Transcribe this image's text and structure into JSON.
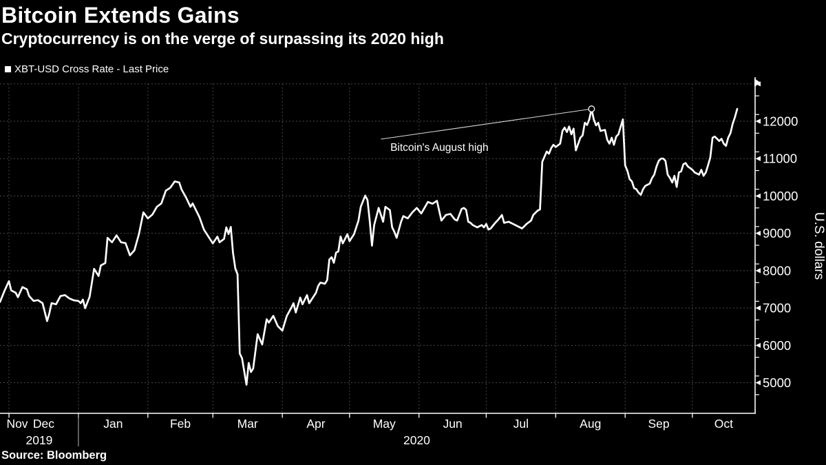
{
  "header": {
    "title": "Bitcoin Extends Gains",
    "subtitle": "Cryptocurrency is on the verge of surpassing its 2020 high"
  },
  "legend": {
    "label": "XBT-USD Cross Rate - Last Price",
    "swatch_color": "#ffffff"
  },
  "source_label": "Source: Bloomberg",
  "colors": {
    "background": "#000000",
    "line": "#ffffff",
    "grid": "#4a4a4a",
    "text": "#ffffff",
    "annotation_line": "#dcdcdc"
  },
  "chart_data": {
    "type": "line",
    "title": "Bitcoin Extends Gains",
    "xlabel": "",
    "ylabel": "U.S. dollars",
    "grid": true,
    "legend_position": "top-left",
    "x_domain": [
      "2019-11-27",
      "2020-10-29"
    ],
    "y_domain": [
      4180,
      13125
    ],
    "y_tick_labels": [
      5000,
      6000,
      7000,
      8000,
      9000,
      10000,
      11000,
      12000
    ],
    "y_gridlines": [
      5000,
      6000,
      7000,
      8000,
      9000,
      10000,
      11000,
      12000,
      13000
    ],
    "y_minor_step": 500,
    "x_month_boundaries": [
      "2019-12-01",
      "2020-01-01",
      "2020-02-01",
      "2020-03-01",
      "2020-04-01",
      "2020-05-01",
      "2020-06-01",
      "2020-07-01",
      "2020-08-01",
      "2020-09-01",
      "2020-10-01"
    ],
    "x_month_labels": [
      "Nov",
      "Dec",
      "Jan",
      "Feb",
      "Mar",
      "Apr",
      "May",
      "Jun",
      "Jul",
      "Aug",
      "Sep",
      "Oct"
    ],
    "x_year_labels": [
      {
        "text": "2019",
        "from": "2019-11-27",
        "to": "2020-01-01"
      },
      {
        "text": "2020",
        "from": "2020-01-01",
        "to": "2020-10-29"
      }
    ],
    "year_separator_date": "2020-01-01",
    "annotation": {
      "text": "Bitcoin's August high",
      "marker_date": "2020-08-17",
      "marker_value": 12330,
      "line_start_date": "2020-05-15",
      "line_start_value": 11520,
      "text_end_date": "2020-07-02",
      "text_end_value": 11300
    },
    "series": [
      {
        "name": "XBT-USD Cross Rate - Last Price",
        "color": "#ffffff",
        "points": [
          [
            "2019-11-27",
            7160
          ],
          [
            "2019-11-29",
            7460
          ],
          [
            "2019-12-01",
            7720
          ],
          [
            "2019-12-02",
            7470
          ],
          [
            "2019-12-04",
            7410
          ],
          [
            "2019-12-05",
            7290
          ],
          [
            "2019-12-07",
            7560
          ],
          [
            "2019-12-09",
            7500
          ],
          [
            "2019-12-10",
            7320
          ],
          [
            "2019-12-12",
            7190
          ],
          [
            "2019-12-14",
            7210
          ],
          [
            "2019-12-16",
            7130
          ],
          [
            "2019-12-18",
            6650
          ],
          [
            "2019-12-19",
            6850
          ],
          [
            "2019-12-20",
            7130
          ],
          [
            "2019-12-22",
            7100
          ],
          [
            "2019-12-24",
            7320
          ],
          [
            "2019-12-26",
            7345
          ],
          [
            "2019-12-28",
            7255
          ],
          [
            "2019-12-30",
            7205
          ],
          [
            "2020-01-01",
            7190
          ],
          [
            "2020-01-02",
            7130
          ],
          [
            "2020-01-03",
            7225
          ],
          [
            "2020-01-04",
            6995
          ],
          [
            "2020-01-06",
            7300
          ],
          [
            "2020-01-08",
            8050
          ],
          [
            "2020-01-10",
            7855
          ],
          [
            "2020-01-11",
            8140
          ],
          [
            "2020-01-13",
            8205
          ],
          [
            "2020-01-14",
            8880
          ],
          [
            "2020-01-16",
            8760
          ],
          [
            "2020-01-18",
            8945
          ],
          [
            "2020-01-20",
            8760
          ],
          [
            "2020-01-22",
            8740
          ],
          [
            "2020-01-24",
            8410
          ],
          [
            "2020-01-26",
            8545
          ],
          [
            "2020-01-28",
            8975
          ],
          [
            "2020-01-30",
            9560
          ],
          [
            "2020-02-01",
            9400
          ],
          [
            "2020-02-03",
            9500
          ],
          [
            "2020-02-05",
            9710
          ],
          [
            "2020-02-07",
            9800
          ],
          [
            "2020-02-09",
            10140
          ],
          [
            "2020-02-11",
            10220
          ],
          [
            "2020-02-13",
            10390
          ],
          [
            "2020-02-15",
            10360
          ],
          [
            "2020-02-16",
            10175
          ],
          [
            "2020-02-18",
            9960
          ],
          [
            "2020-02-20",
            9710
          ],
          [
            "2020-02-21",
            9800
          ],
          [
            "2020-02-24",
            9435
          ],
          [
            "2020-02-26",
            9100
          ],
          [
            "2020-02-28",
            8915
          ],
          [
            "2020-03-01",
            8730
          ],
          [
            "2020-03-03",
            8910
          ],
          [
            "2020-03-04",
            8760
          ],
          [
            "2020-03-06",
            8850
          ],
          [
            "2020-03-07",
            9160
          ],
          [
            "2020-03-08",
            8980
          ],
          [
            "2020-03-09",
            9170
          ],
          [
            "2020-03-10",
            8480
          ],
          [
            "2020-03-11",
            8065
          ],
          [
            "2020-03-12",
            7900
          ],
          [
            "2020-03-13",
            5780
          ],
          [
            "2020-03-14",
            5655
          ],
          [
            "2020-03-16",
            4945
          ],
          [
            "2020-03-17",
            5530
          ],
          [
            "2020-03-18",
            5285
          ],
          [
            "2020-03-19",
            5380
          ],
          [
            "2020-03-21",
            6300
          ],
          [
            "2020-03-23",
            6025
          ],
          [
            "2020-03-25",
            6700
          ],
          [
            "2020-03-26",
            6610
          ],
          [
            "2020-03-28",
            6790
          ],
          [
            "2020-03-30",
            6515
          ],
          [
            "2020-04-01",
            6395
          ],
          [
            "2020-04-03",
            6790
          ],
          [
            "2020-04-05",
            7005
          ],
          [
            "2020-04-06",
            7130
          ],
          [
            "2020-04-07",
            6880
          ],
          [
            "2020-04-09",
            7280
          ],
          [
            "2020-04-10",
            7100
          ],
          [
            "2020-04-12",
            7345
          ],
          [
            "2020-04-13",
            7130
          ],
          [
            "2020-04-16",
            7405
          ],
          [
            "2020-04-17",
            7590
          ],
          [
            "2020-04-18",
            7680
          ],
          [
            "2020-04-20",
            7650
          ],
          [
            "2020-04-21",
            7745
          ],
          [
            "2020-04-22",
            8300
          ],
          [
            "2020-04-23",
            8360
          ],
          [
            "2020-04-24",
            8210
          ],
          [
            "2020-04-25",
            8485
          ],
          [
            "2020-04-26",
            8515
          ],
          [
            "2020-04-27",
            8915
          ],
          [
            "2020-04-28",
            8730
          ],
          [
            "2020-04-30",
            8975
          ],
          [
            "2020-05-01",
            8790
          ],
          [
            "2020-05-03",
            8975
          ],
          [
            "2020-05-05",
            9340
          ],
          [
            "2020-05-06",
            9710
          ],
          [
            "2020-05-08",
            10010
          ],
          [
            "2020-05-09",
            9890
          ],
          [
            "2020-05-10",
            9340
          ],
          [
            "2020-05-11",
            8670
          ],
          [
            "2020-05-12",
            9220
          ],
          [
            "2020-05-14",
            9680
          ],
          [
            "2020-05-16",
            9310
          ],
          [
            "2020-05-17",
            9710
          ],
          [
            "2020-05-19",
            9620
          ],
          [
            "2020-05-20",
            9160
          ],
          [
            "2020-05-21",
            9040
          ],
          [
            "2020-05-22",
            8880
          ],
          [
            "2020-05-24",
            9310
          ],
          [
            "2020-05-25",
            9460
          ],
          [
            "2020-05-27",
            9400
          ],
          [
            "2020-05-29",
            9560
          ],
          [
            "2020-05-31",
            9680
          ],
          [
            "2020-06-02",
            9530
          ],
          [
            "2020-06-05",
            9840
          ],
          [
            "2020-06-07",
            9790
          ],
          [
            "2020-06-09",
            9870
          ],
          [
            "2020-06-11",
            9340
          ],
          [
            "2020-06-13",
            9490
          ],
          [
            "2020-06-15",
            9520
          ],
          [
            "2020-06-17",
            9370
          ],
          [
            "2020-06-18",
            9340
          ],
          [
            "2020-06-20",
            9650
          ],
          [
            "2020-06-21",
            9680
          ],
          [
            "2020-06-22",
            9630
          ],
          [
            "2020-06-23",
            9310
          ],
          [
            "2020-06-24",
            9280
          ],
          [
            "2020-06-25",
            9220
          ],
          [
            "2020-06-27",
            9160
          ],
          [
            "2020-06-29",
            9220
          ],
          [
            "2020-06-30",
            9160
          ],
          [
            "2020-07-01",
            9250
          ],
          [
            "2020-07-02",
            9100
          ],
          [
            "2020-07-03",
            9130
          ],
          [
            "2020-07-05",
            9280
          ],
          [
            "2020-07-06",
            9340
          ],
          [
            "2020-07-08",
            9490
          ],
          [
            "2020-07-09",
            9280
          ],
          [
            "2020-07-11",
            9310
          ],
          [
            "2020-07-12",
            9280
          ],
          [
            "2020-07-13",
            9250
          ],
          [
            "2020-07-16",
            9160
          ],
          [
            "2020-07-17",
            9130
          ],
          [
            "2020-07-19",
            9250
          ],
          [
            "2020-07-21",
            9340
          ],
          [
            "2020-07-22",
            9490
          ],
          [
            "2020-07-23",
            9550
          ],
          [
            "2020-07-24",
            9610
          ],
          [
            "2020-07-25",
            9640
          ],
          [
            "2020-07-26",
            10915
          ],
          [
            "2020-07-27",
            11050
          ],
          [
            "2020-07-28",
            11190
          ],
          [
            "2020-07-29",
            11130
          ],
          [
            "2020-07-30",
            11280
          ],
          [
            "2020-07-31",
            11370
          ],
          [
            "2020-08-01",
            11310
          ],
          [
            "2020-08-03",
            11400
          ],
          [
            "2020-08-04",
            11740
          ],
          [
            "2020-08-05",
            11830
          ],
          [
            "2020-08-06",
            11710
          ],
          [
            "2020-08-07",
            11860
          ],
          [
            "2020-08-08",
            11650
          ],
          [
            "2020-08-09",
            11800
          ],
          [
            "2020-08-10",
            11220
          ],
          [
            "2020-08-12",
            11560
          ],
          [
            "2020-08-13",
            11620
          ],
          [
            "2020-08-14",
            11960
          ],
          [
            "2020-08-15",
            11900
          ],
          [
            "2020-08-16",
            12050
          ],
          [
            "2020-08-17",
            12330
          ],
          [
            "2020-08-18",
            12050
          ],
          [
            "2020-08-19",
            11890
          ],
          [
            "2020-08-20",
            11960
          ],
          [
            "2020-08-21",
            11740
          ],
          [
            "2020-08-23",
            11770
          ],
          [
            "2020-08-24",
            11500
          ],
          [
            "2020-08-25",
            11400
          ],
          [
            "2020-08-26",
            11560
          ],
          [
            "2020-08-27",
            11370
          ],
          [
            "2020-08-28",
            11590
          ],
          [
            "2020-08-29",
            11650
          ],
          [
            "2020-08-31",
            12050
          ],
          [
            "2020-09-01",
            10820
          ],
          [
            "2020-09-02",
            10670
          ],
          [
            "2020-09-03",
            10450
          ],
          [
            "2020-09-04",
            10390
          ],
          [
            "2020-09-05",
            10210
          ],
          [
            "2020-09-06",
            10180
          ],
          [
            "2020-09-07",
            10090
          ],
          [
            "2020-09-08",
            10030
          ],
          [
            "2020-09-09",
            10180
          ],
          [
            "2020-09-10",
            10270
          ],
          [
            "2020-09-12",
            10330
          ],
          [
            "2020-09-13",
            10480
          ],
          [
            "2020-09-14",
            10570
          ],
          [
            "2020-09-15",
            10790
          ],
          [
            "2020-09-16",
            10940
          ],
          [
            "2020-09-17",
            11000
          ],
          [
            "2020-09-18",
            11000
          ],
          [
            "2020-09-19",
            10940
          ],
          [
            "2020-09-20",
            10570
          ],
          [
            "2020-09-21",
            10480
          ],
          [
            "2020-09-22",
            10360
          ],
          [
            "2020-09-23",
            10540
          ],
          [
            "2020-09-24",
            10240
          ],
          [
            "2020-09-25",
            10630
          ],
          [
            "2020-09-26",
            10660
          ],
          [
            "2020-09-27",
            10850
          ],
          [
            "2020-09-28",
            10880
          ],
          [
            "2020-09-29",
            10790
          ],
          [
            "2020-10-01",
            10700
          ],
          [
            "2020-10-02",
            10630
          ],
          [
            "2020-10-04",
            10570
          ],
          [
            "2020-10-05",
            10700
          ],
          [
            "2020-10-06",
            10540
          ],
          [
            "2020-10-07",
            10630
          ],
          [
            "2020-10-08",
            10820
          ],
          [
            "2020-10-09",
            11030
          ],
          [
            "2020-10-10",
            11560
          ],
          [
            "2020-10-11",
            11590
          ],
          [
            "2020-10-12",
            11530
          ],
          [
            "2020-10-13",
            11470
          ],
          [
            "2020-10-14",
            11530
          ],
          [
            "2020-10-15",
            11400
          ],
          [
            "2020-10-16",
            11340
          ],
          [
            "2020-10-17",
            11560
          ],
          [
            "2020-10-18",
            11680
          ],
          [
            "2020-10-19",
            11930
          ],
          [
            "2020-10-20",
            12110
          ],
          [
            "2020-10-21",
            12330
          ]
        ]
      }
    ]
  }
}
